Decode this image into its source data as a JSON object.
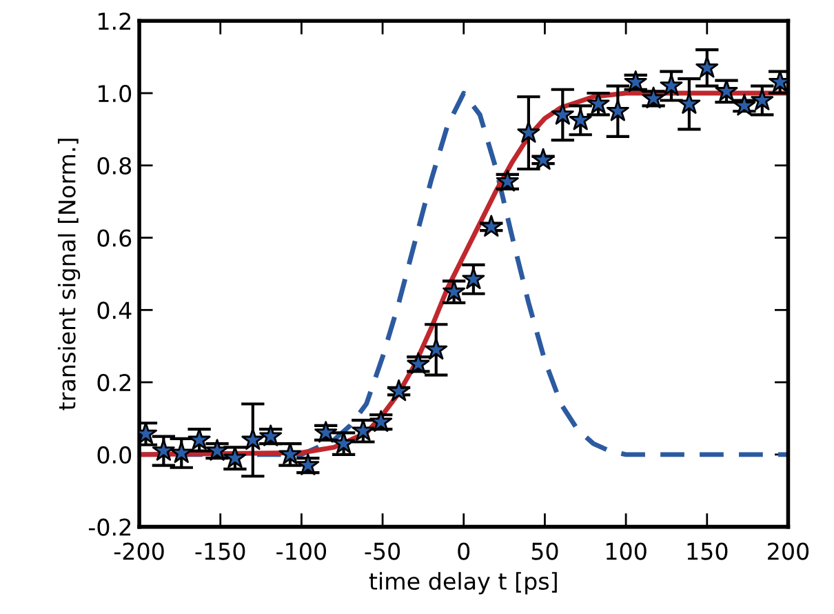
{
  "chart_data": {
    "type": "scatter",
    "xlabel": "time delay t [ps]",
    "ylabel": "transient signal [Norm.]",
    "xlim": [
      -200,
      200
    ],
    "ylim": [
      -0.2,
      1.2
    ],
    "xticks": [
      {
        "value": -200,
        "label": "-200"
      },
      {
        "value": -150,
        "label": "-150"
      },
      {
        "value": -100,
        "label": "-100"
      },
      {
        "value": -50,
        "label": "-50"
      },
      0,
      50,
      100,
      150,
      200
    ],
    "yticks": [
      {
        "value": -0.2,
        "label": "-0.2"
      },
      {
        "value": 0,
        "label": "0.0"
      },
      0.2,
      0.4,
      0.6,
      0.8,
      {
        "value": 1.0,
        "label": "1.0"
      },
      1.2
    ],
    "grid": false,
    "series": [
      {
        "type": "line",
        "color": "#2c5aa0",
        "line_style": "dashed",
        "marker": "none",
        "x": [
          -200,
          -100,
          -80,
          -70,
          -60,
          -50,
          -40,
          -30,
          -20,
          -10,
          0,
          10,
          20,
          30,
          40,
          50,
          60,
          70,
          80,
          90,
          100,
          200
        ],
        "values": [
          0,
          0,
          0.04,
          0.08,
          0.14,
          0.27,
          0.42,
          0.59,
          0.76,
          0.91,
          1.0,
          0.94,
          0.79,
          0.6,
          0.42,
          0.26,
          0.14,
          0.07,
          0.03,
          0.01,
          0,
          0
        ]
      },
      {
        "type": "line",
        "color": "#c0282d",
        "line_style": "solid",
        "marker": "none",
        "x": [
          -200,
          -100,
          -80,
          -60,
          -50,
          -40,
          -30,
          -20,
          -10,
          0,
          10,
          20,
          30,
          40,
          50,
          60,
          80,
          100,
          200
        ],
        "values": [
          0,
          0.005,
          0.02,
          0.06,
          0.11,
          0.17,
          0.25,
          0.35,
          0.46,
          0.55,
          0.64,
          0.73,
          0.81,
          0.88,
          0.93,
          0.96,
          0.99,
          1.0,
          1.0
        ]
      },
      {
        "color": "#2b5ea8",
        "marker": "star",
        "x": [
          -196,
          -185,
          -174,
          -163,
          -152,
          -141,
          -130,
          -119,
          -107,
          -96,
          -85,
          -74,
          -62,
          -51,
          -40,
          -28,
          -17,
          -6,
          6,
          17,
          27,
          40,
          49,
          61,
          72,
          83,
          95,
          106,
          117,
          128,
          139,
          150,
          162,
          173,
          184,
          195
        ],
        "values": [
          0.057,
          0.01,
          0.004,
          0.04,
          0.01,
          -0.01,
          0.04,
          0.05,
          0.0,
          -0.03,
          0.06,
          0.03,
          0.065,
          0.09,
          0.175,
          0.25,
          0.29,
          0.45,
          0.485,
          0.63,
          0.755,
          0.89,
          0.815,
          0.94,
          0.925,
          0.97,
          0.95,
          1.03,
          0.985,
          1.02,
          0.97,
          1.07,
          1.005,
          0.965,
          0.98,
          1.03
        ],
        "errors": [
          0.03,
          0.04,
          0.04,
          0.03,
          0.02,
          0.03,
          0.1,
          0.02,
          0.03,
          0.02,
          0.02,
          0.03,
          0.03,
          0.02,
          0.01,
          0.02,
          0.07,
          0.03,
          0.04,
          0.01,
          0.02,
          0.1,
          0.01,
          0.07,
          0.04,
          0.03,
          0.07,
          0.02,
          0.02,
          0.04,
          0.07,
          0.05,
          0.03,
          0.015,
          0.04,
          0.03
        ]
      }
    ]
  }
}
